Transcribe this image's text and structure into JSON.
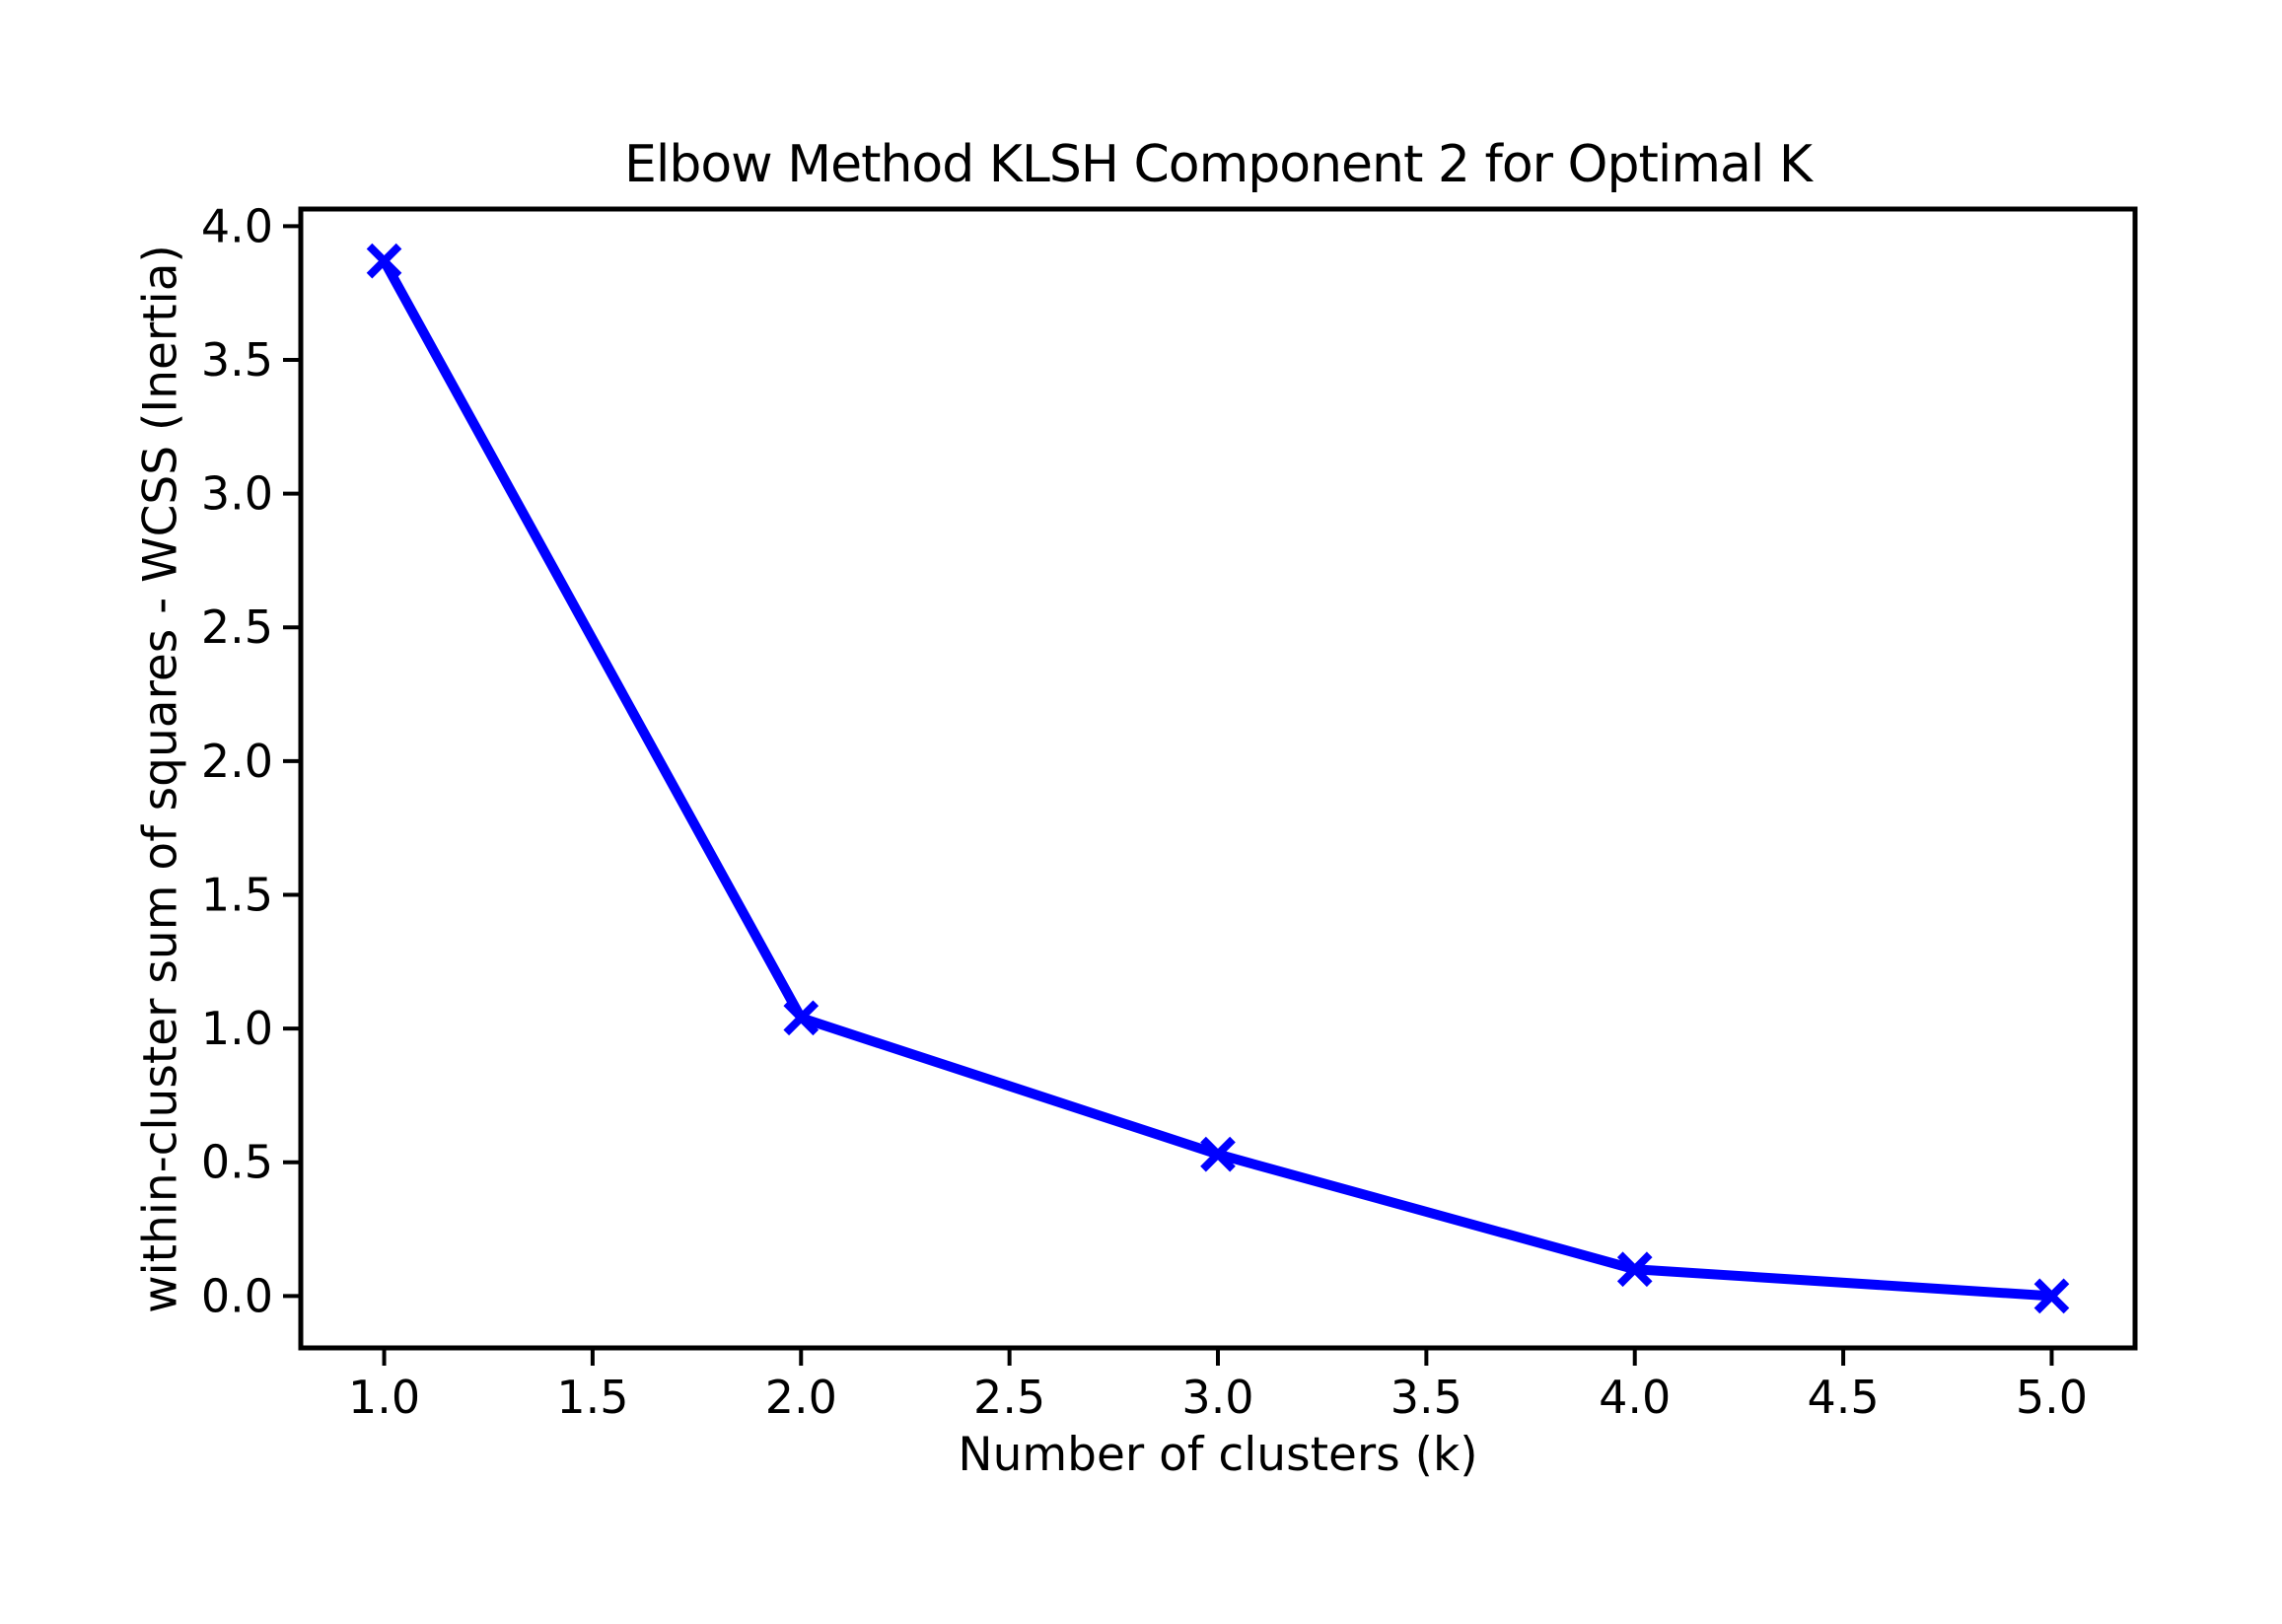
{
  "chart_data": {
    "type": "line",
    "title": "Elbow Method KLSH Component 2 for Optimal K",
    "xlabel": "Number of clusters (k)",
    "ylabel": "within-cluster sum of squares - WCSS (Inertia)",
    "series": [
      {
        "name": "WCSS (Inertia)",
        "x": [
          1,
          2,
          3,
          4,
          5
        ],
        "y": [
          3.87,
          1.04,
          0.53,
          0.1,
          0.0
        ],
        "color": "#0000ff",
        "marker": "x",
        "line_width": 10,
        "marker_size": 15,
        "marker_stroke": 8
      }
    ],
    "xlim": [
      0.8,
      5.2
    ],
    "ylim": [
      -0.194,
      4.064
    ],
    "xticks": {
      "values": [
        1.0,
        1.5,
        2.0,
        2.5,
        3.0,
        3.5,
        4.0,
        4.5,
        5.0
      ],
      "labels": [
        "1.0",
        "1.5",
        "2.0",
        "2.5",
        "3.0",
        "3.5",
        "4.0",
        "4.5",
        "5.0"
      ]
    },
    "yticks": {
      "values": [
        0.0,
        0.5,
        1.0,
        1.5,
        2.0,
        2.5,
        3.0,
        3.5,
        4.0
      ],
      "labels": [
        "0.0",
        "0.5",
        "1.0",
        "1.5",
        "2.0",
        "2.5",
        "3.0",
        "3.5",
        "4.0"
      ]
    },
    "grid": false,
    "legend": null,
    "axis_color": "#000000",
    "background": "#ffffff"
  }
}
